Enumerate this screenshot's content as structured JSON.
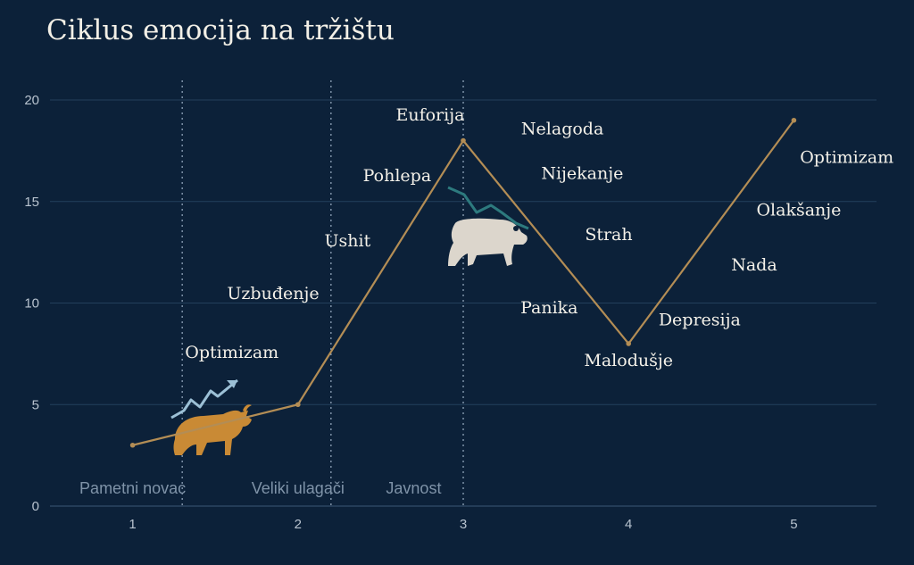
{
  "chart_data": {
    "type": "line",
    "title": "Ciklus emocija na tržištu",
    "xlabel": "",
    "ylabel": "",
    "x_ticks": [
      "1",
      "2",
      "3",
      "4",
      "5"
    ],
    "y_ticks": [
      "0",
      "5",
      "10",
      "15",
      "20"
    ],
    "ylim": [
      0,
      20
    ],
    "xlim": [
      0.5,
      5.5
    ],
    "grid": true,
    "legend": "none",
    "line_color": "#b38d55",
    "series": [
      {
        "x": [
          1,
          2,
          3,
          4,
          5
        ],
        "values": [
          3,
          5,
          18,
          8,
          19
        ]
      }
    ],
    "phases": [
      {
        "label": "Pametni novac",
        "x": 1
      },
      {
        "label": "Veliki ulagači",
        "x": 2
      },
      {
        "label": "Javnost",
        "x": 2.7
      }
    ],
    "phase_dividers_x": [
      1.3,
      2.2,
      3
    ],
    "annotations": [
      {
        "text": "Optimizam",
        "x": 1.6,
        "y": 7.3
      },
      {
        "text": "Uzbuđenje",
        "x": 1.85,
        "y": 10.2
      },
      {
        "text": "Ushit",
        "x": 2.3,
        "y": 12.8
      },
      {
        "text": "Pohlepa",
        "x": 2.6,
        "y": 16.0
      },
      {
        "text": "Euforija",
        "x": 2.8,
        "y": 19.0
      },
      {
        "text": "Nelagoda",
        "x": 3.6,
        "y": 18.3
      },
      {
        "text": "Nijekanje",
        "x": 3.72,
        "y": 16.1
      },
      {
        "text": "Strah",
        "x": 3.88,
        "y": 13.1
      },
      {
        "text": "Panika",
        "x": 3.52,
        "y": 9.5
      },
      {
        "text": "Malodušje",
        "x": 4.0,
        "y": 6.9
      },
      {
        "text": "Depresija",
        "x": 4.43,
        "y": 8.9
      },
      {
        "text": "Nada",
        "x": 4.76,
        "y": 11.6
      },
      {
        "text": "Olakšanje",
        "x": 5.03,
        "y": 14.3
      },
      {
        "text": "Optimizam",
        "x": 5.32,
        "y": 16.9
      }
    ],
    "icons": {
      "bull": {
        "name": "bull-icon",
        "color": "#c98a35",
        "arrow_color": "#9cc0d6"
      },
      "bear": {
        "name": "bear-icon",
        "color": "#dcd6cc",
        "arrow_color": "#2d7a7e"
      }
    }
  }
}
